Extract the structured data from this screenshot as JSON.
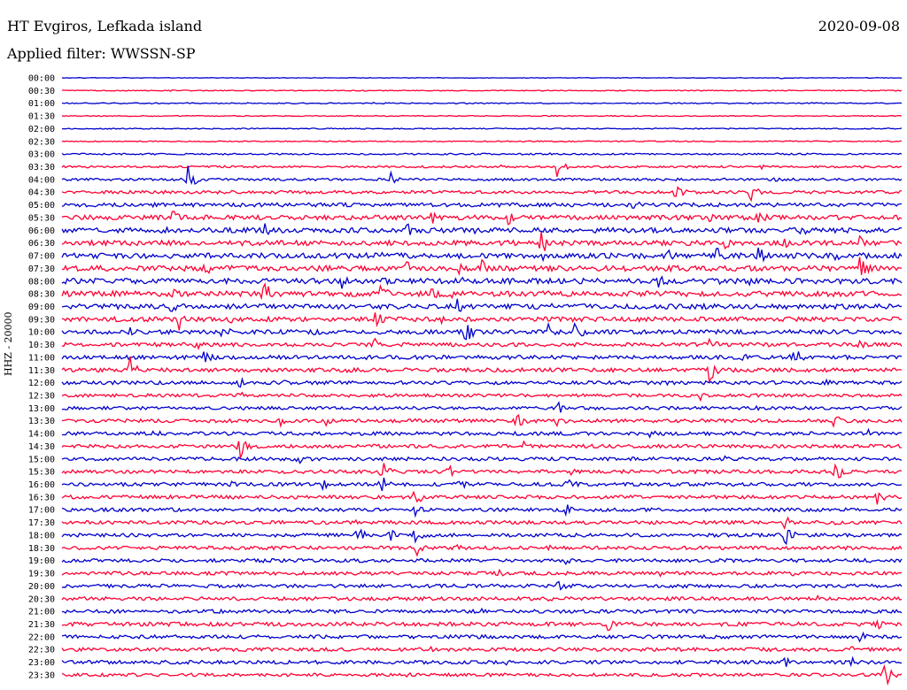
{
  "header": {
    "station": "HT Evgiros, Lefkada island",
    "date": "2020-09-08",
    "filter": "Applied filter: WWSSN-SP"
  },
  "chart_data": {
    "type": "line",
    "channel_label": "HHZ - 20000",
    "colors": [
      "#0000cc",
      "#ff0033"
    ],
    "rows": [
      "00:00",
      "00:30",
      "01:00",
      "01:30",
      "02:00",
      "02:30",
      "03:00",
      "03:30",
      "04:00",
      "04:30",
      "05:00",
      "05:30",
      "06:00",
      "06:30",
      "07:00",
      "07:30",
      "08:00",
      "08:30",
      "09:00",
      "09:30",
      "10:00",
      "10:30",
      "11:00",
      "11:30",
      "12:00",
      "12:30",
      "13:00",
      "13:30",
      "14:00",
      "14:30",
      "15:00",
      "15:30",
      "16:00",
      "16:30",
      "17:00",
      "17:30",
      "18:00",
      "18:30",
      "19:00",
      "19:30",
      "20:00",
      "20:30",
      "21:00",
      "21:30",
      "22:00",
      "22:30",
      "23:00",
      "23:30"
    ],
    "noise_level": [
      0.3,
      0.5,
      0.6,
      0.5,
      0.6,
      0.6,
      0.9,
      1.2,
      1.4,
      1.8,
      2.2,
      2.6,
      2.8,
      2.8,
      3.0,
      3.0,
      3.0,
      3.0,
      2.8,
      2.6,
      2.4,
      2.2,
      2.2,
      2.2,
      2.0,
      1.8,
      1.8,
      2.0,
      2.0,
      2.0,
      2.0,
      2.0,
      2.0,
      2.0,
      2.0,
      2.0,
      2.0,
      2.0,
      2.0,
      2.0,
      2.0,
      2.0,
      2.0,
      2.2,
      2.0,
      2.0,
      2.0,
      1.8
    ],
    "events": [
      [
        [
          0.855,
          1.2
        ]
      ],
      [
        [
          0.13,
          1.5
        ],
        [
          0.65,
          1.0
        ],
        [
          0.36,
          1.0
        ]
      ],
      [
        [
          0.37,
          1.5
        ],
        [
          0.82,
          1.2
        ]
      ],
      [
        [
          0.585,
          1.5
        ]
      ],
      [
        [
          0.21,
          1.0
        ],
        [
          0.36,
          0.8
        ]
      ],
      [
        [
          0.63,
          1.0
        ]
      ],
      [
        [
          0.58,
          1.5
        ],
        [
          0.85,
          1.5
        ]
      ],
      [
        [
          0.52,
          3
        ],
        [
          0.59,
          14
        ],
        [
          0.83,
          4
        ]
      ],
      [
        [
          0.15,
          16
        ],
        [
          0.39,
          10
        ],
        [
          0.54,
          4
        ],
        [
          0.85,
          5
        ]
      ],
      [
        [
          0.18,
          5
        ],
        [
          0.73,
          14
        ],
        [
          0.82,
          12
        ]
      ],
      [
        [
          0.35,
          3
        ],
        [
          0.42,
          6
        ],
        [
          0.68,
          14
        ],
        [
          0.82,
          6
        ]
      ],
      [
        [
          0.13,
          12
        ],
        [
          0.44,
          10
        ],
        [
          0.53,
          12
        ],
        [
          0.67,
          4
        ],
        [
          0.77,
          10
        ],
        [
          0.83,
          16
        ],
        [
          0.93,
          4
        ]
      ],
      [
        [
          0.12,
          7
        ],
        [
          0.24,
          14
        ],
        [
          0.41,
          10
        ],
        [
          0.49,
          5
        ],
        [
          0.58,
          8
        ],
        [
          0.78,
          7
        ],
        [
          0.88,
          8
        ],
        [
          0.95,
          3
        ]
      ],
      [
        [
          0.18,
          4
        ],
        [
          0.28,
          4
        ],
        [
          0.57,
          18
        ],
        [
          0.79,
          8
        ],
        [
          0.86,
          10
        ],
        [
          0.95,
          8
        ]
      ],
      [
        [
          0.16,
          4
        ],
        [
          0.38,
          4
        ],
        [
          0.57,
          8
        ],
        [
          0.72,
          10
        ],
        [
          0.78,
          14
        ],
        [
          0.83,
          16
        ],
        [
          0.92,
          10
        ]
      ],
      [
        [
          0.17,
          10
        ],
        [
          0.41,
          12
        ],
        [
          0.47,
          14
        ],
        [
          0.5,
          12
        ],
        [
          0.61,
          3
        ],
        [
          0.72,
          6
        ],
        [
          0.95,
          16
        ]
      ],
      [
        [
          0.33,
          14
        ],
        [
          0.38,
          8
        ],
        [
          0.47,
          16
        ],
        [
          0.71,
          14
        ],
        [
          0.78,
          8
        ],
        [
          0.82,
          10
        ]
      ],
      [
        [
          0.13,
          10
        ],
        [
          0.24,
          18
        ],
        [
          0.32,
          4
        ],
        [
          0.38,
          14
        ],
        [
          0.44,
          12
        ],
        [
          0.46,
          10
        ],
        [
          0.85,
          4
        ]
      ],
      [
        [
          0.13,
          8
        ],
        [
          0.28,
          4
        ],
        [
          0.47,
          10
        ],
        [
          0.58,
          6
        ],
        [
          0.82,
          8
        ]
      ],
      [
        [
          0.14,
          18
        ],
        [
          0.2,
          6
        ],
        [
          0.37,
          18
        ],
        [
          0.45,
          6
        ],
        [
          0.52,
          4
        ]
      ],
      [
        [
          0.08,
          10
        ],
        [
          0.19,
          12
        ],
        [
          0.3,
          6
        ],
        [
          0.48,
          16
        ],
        [
          0.58,
          14
        ],
        [
          0.61,
          18
        ],
        [
          0.93,
          4
        ]
      ],
      [
        [
          0.06,
          3
        ],
        [
          0.16,
          8
        ],
        [
          0.37,
          10
        ],
        [
          0.77,
          12
        ],
        [
          0.95,
          8
        ]
      ],
      [
        [
          0.17,
          14
        ],
        [
          0.36,
          6
        ],
        [
          0.81,
          10
        ],
        [
          0.87,
          16
        ],
        [
          0.93,
          4
        ]
      ],
      [
        [
          0.08,
          18
        ],
        [
          0.34,
          4
        ],
        [
          0.77,
          18
        ],
        [
          0.96,
          4
        ]
      ],
      [
        [
          0.21,
          10
        ],
        [
          0.26,
          6
        ],
        [
          0.72,
          4
        ],
        [
          0.91,
          6
        ]
      ],
      [
        [
          0.21,
          6
        ],
        [
          0.53,
          4
        ],
        [
          0.76,
          8
        ]
      ],
      [
        [
          0.59,
          8
        ],
        [
          0.82,
          10
        ]
      ],
      [
        [
          0.26,
          10
        ],
        [
          0.31,
          10
        ],
        [
          0.54,
          14
        ],
        [
          0.59,
          10
        ],
        [
          0.92,
          12
        ]
      ],
      [
        [
          0.11,
          6
        ],
        [
          0.36,
          4
        ],
        [
          0.7,
          6
        ],
        [
          0.96,
          6
        ]
      ],
      [
        [
          0.21,
          18
        ],
        [
          0.55,
          6
        ],
        [
          0.92,
          4
        ]
      ],
      [
        [
          0.28,
          14
        ],
        [
          0.47,
          4
        ],
        [
          0.79,
          4
        ],
        [
          0.86,
          4
        ]
      ],
      [
        [
          0.38,
          18
        ],
        [
          0.46,
          10
        ],
        [
          0.6,
          10
        ],
        [
          0.92,
          18
        ]
      ],
      [
        [
          0.2,
          6
        ],
        [
          0.31,
          8
        ],
        [
          0.38,
          14
        ],
        [
          0.47,
          12
        ],
        [
          0.6,
          14
        ],
        [
          0.7,
          4
        ]
      ],
      [
        [
          0.2,
          4
        ],
        [
          0.42,
          12
        ],
        [
          0.97,
          14
        ]
      ],
      [
        [
          0.42,
          10
        ],
        [
          0.6,
          8
        ]
      ],
      [
        [
          0.35,
          6
        ],
        [
          0.5,
          4
        ],
        [
          0.86,
          10
        ],
        [
          0.92,
          4
        ]
      ],
      [
        [
          0.35,
          14
        ],
        [
          0.39,
          10
        ],
        [
          0.42,
          12
        ],
        [
          0.86,
          18
        ]
      ],
      [
        [
          0.42,
          14
        ],
        [
          0.47,
          6
        ],
        [
          0.58,
          4
        ]
      ],
      [
        [
          0.24,
          4
        ],
        [
          0.6,
          6
        ],
        [
          0.84,
          4
        ]
      ],
      [
        [
          0.52,
          6
        ],
        [
          0.71,
          6
        ],
        [
          0.87,
          4
        ]
      ],
      [
        [
          0.59,
          10
        ],
        [
          0.84,
          4
        ]
      ],
      [
        [
          0.3,
          4
        ],
        [
          0.58,
          4
        ],
        [
          0.9,
          4
        ]
      ],
      [
        [
          0.32,
          4
        ],
        [
          0.5,
          4
        ]
      ],
      [
        [
          0.2,
          4
        ],
        [
          0.65,
          10
        ],
        [
          0.97,
          8
        ]
      ],
      [
        [
          0.95,
          10
        ]
      ],
      [
        [
          0.44,
          4
        ],
        [
          0.94,
          4
        ]
      ],
      [
        [
          0.53,
          6
        ],
        [
          0.72,
          4
        ],
        [
          0.84,
          6
        ],
        [
          0.86,
          8
        ],
        [
          0.94,
          6
        ]
      ],
      [
        [
          0.41,
          4
        ],
        [
          0.77,
          4
        ],
        [
          0.98,
          20
        ]
      ]
    ]
  }
}
